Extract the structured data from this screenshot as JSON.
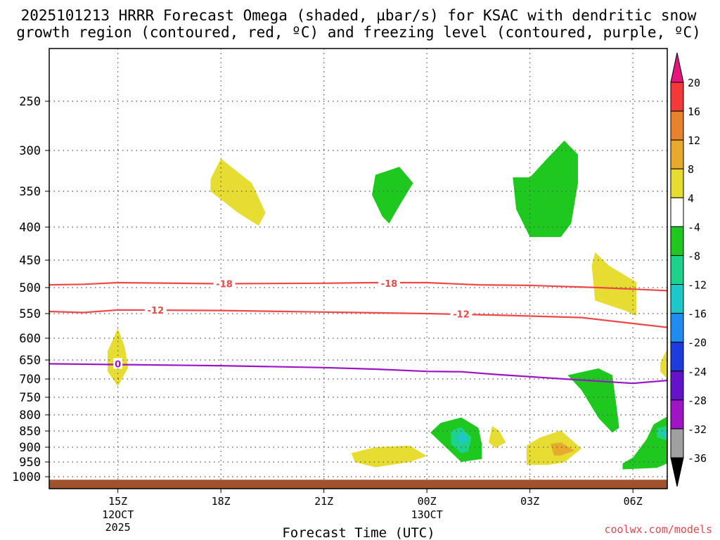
{
  "chart_data": {
    "type": "contour",
    "title_line1": "2025101213 HRRR Forecast Omega (shaded, µbar/s) for KSAC with dendritic snow",
    "title_line2": "growth region (contoured, red, ºC) and freezing level (contoured, purple, ºC)",
    "xlabel": "Forecast Time (UTC)",
    "credit": "coolwx.com/models",
    "x_ticks": [
      {
        "hour": 15,
        "label": "15Z",
        "date_line1": "12OCT",
        "date_line2": "2025"
      },
      {
        "hour": 18,
        "label": "18Z"
      },
      {
        "hour": 21,
        "label": "21Z"
      },
      {
        "hour": 24,
        "label": "00Z",
        "date_line1": "13OCT"
      },
      {
        "hour": 27,
        "label": "03Z"
      },
      {
        "hour": 30,
        "label": "06Z"
      }
    ],
    "x_range_hours": [
      13,
      31
    ],
    "y_axis": "pressure (hPa)",
    "y_levels": [
      250,
      300,
      350,
      400,
      450,
      500,
      550,
      600,
      650,
      700,
      750,
      800,
      850,
      900,
      950,
      1000
    ],
    "y_range": [
      200,
      1020
    ],
    "colorbar": {
      "labels": [
        "20",
        "16",
        "12",
        "8",
        "4",
        "-4",
        "-8",
        "-12",
        "-16",
        "-20",
        "-24",
        "-28",
        "-32",
        "-36"
      ],
      "bins": [
        {
          "range": "16 to 20",
          "color": "#f23a3a"
        },
        {
          "range": "12 to 16",
          "color": "#e8832c"
        },
        {
          "range": "8 to 12",
          "color": "#e8aa2c"
        },
        {
          "range": "4 to 8",
          "color": "#e6dc32"
        },
        {
          "range": "-4 to 4",
          "color": "#ffffff"
        },
        {
          "range": "-8 to -4",
          "color": "#1ec81e"
        },
        {
          "range": "-12 to -8",
          "color": "#1ed28c"
        },
        {
          "range": "-16 to -12",
          "color": "#1ec8c8"
        },
        {
          "range": "-20 to -16",
          "color": "#1e8cf0"
        },
        {
          "range": "-24 to -20",
          "color": "#1e3cdc"
        },
        {
          "range": "-28 to -24",
          "color": "#6414c8"
        },
        {
          "range": "-32 to -28",
          "color": "#a014c8"
        },
        {
          "range": "-36 to -32",
          "color": "#a0a0a0"
        }
      ],
      "top_arrow_color": "#e6147d",
      "bottom_arrow_color": "#000000"
    },
    "contours": [
      {
        "name": "-18C isotherm",
        "value": -18,
        "color": "#f04848",
        "label": "-18",
        "points": [
          [
            13,
            495
          ],
          [
            14,
            494
          ],
          [
            15,
            491
          ],
          [
            18,
            493
          ],
          [
            21,
            492
          ],
          [
            22.5,
            491
          ],
          [
            24,
            491
          ],
          [
            25.5,
            495
          ],
          [
            27,
            496
          ],
          [
            29,
            500
          ],
          [
            31,
            506
          ]
        ]
      },
      {
        "name": "-12C isotherm",
        "value": -12,
        "color": "#f04848",
        "label": "-12",
        "points": [
          [
            13,
            546
          ],
          [
            14,
            548
          ],
          [
            15,
            543
          ],
          [
            18,
            544
          ],
          [
            21,
            547
          ],
          [
            24,
            550
          ],
          [
            26,
            553
          ],
          [
            28.5,
            558
          ],
          [
            31,
            578
          ]
        ]
      },
      {
        "name": "freezing level",
        "value": 0,
        "color": "#9a14c8",
        "label": "0",
        "points": [
          [
            13,
            660
          ],
          [
            15,
            662
          ],
          [
            18,
            665
          ],
          [
            21,
            670
          ],
          [
            22.5,
            674
          ],
          [
            24,
            680
          ],
          [
            25,
            681
          ],
          [
            26,
            688
          ],
          [
            28,
            700
          ],
          [
            30,
            712
          ],
          [
            31,
            704
          ]
        ]
      }
    ],
    "contour_labels": [
      {
        "contour": "-18C isotherm",
        "text": "-18",
        "hour": 18.1,
        "pressure": 493
      },
      {
        "contour": "-18C isotherm",
        "text": "-18",
        "hour": 22.9,
        "pressure": 492
      },
      {
        "contour": "-12C isotherm",
        "text": "-12",
        "hour": 16.1,
        "pressure": 543
      },
      {
        "contour": "-12C isotherm",
        "text": "-12",
        "hour": 25.0,
        "pressure": 551
      },
      {
        "contour": "freezing level",
        "text": "0",
        "hour": 15.0,
        "pressure": 660
      }
    ],
    "omega_regions": [
      {
        "value_range": "4 to 8",
        "color": "#e6dc32",
        "points": [
          [
            18.0,
            310
          ],
          [
            18.9,
            340
          ],
          [
            19.3,
            380
          ],
          [
            19.1,
            398
          ],
          [
            18.5,
            380
          ],
          [
            17.7,
            350
          ],
          [
            17.7,
            335
          ]
        ]
      },
      {
        "value_range": "-8 to -4",
        "color": "#1ec81e",
        "points": [
          [
            22.5,
            330
          ],
          [
            23.2,
            320
          ],
          [
            23.6,
            340
          ],
          [
            23.2,
            370
          ],
          [
            22.9,
            395
          ],
          [
            22.7,
            385
          ],
          [
            22.4,
            355
          ]
        ]
      },
      {
        "value_range": "-8 to -4",
        "color": "#1ec81e",
        "points": [
          [
            26.5,
            333
          ],
          [
            27.0,
            333
          ],
          [
            27.5,
            310
          ],
          [
            28.0,
            290
          ],
          [
            28.4,
            305
          ],
          [
            28.4,
            340
          ],
          [
            28.2,
            395
          ],
          [
            27.9,
            415
          ],
          [
            27.0,
            415
          ],
          [
            26.6,
            375
          ]
        ]
      },
      {
        "value_range": "4 to 8",
        "color": "#e6dc32",
        "points": [
          [
            28.9,
            438
          ],
          [
            29.3,
            460
          ],
          [
            30.1,
            490
          ],
          [
            30.1,
            525
          ],
          [
            30.1,
            555
          ],
          [
            29.8,
            545
          ],
          [
            28.9,
            525
          ],
          [
            28.8,
            460
          ]
        ]
      },
      {
        "value_range": "4 to 8",
        "color": "#e6dc32",
        "points": [
          [
            15.0,
            580
          ],
          [
            15.2,
            620
          ],
          [
            15.3,
            670
          ],
          [
            15.0,
            720
          ],
          [
            14.7,
            680
          ],
          [
            14.7,
            630
          ]
        ]
      },
      {
        "value_range": "4 to 8",
        "color": "#e6dc32",
        "points": [
          [
            30.9,
            640
          ],
          [
            31.0,
            625
          ],
          [
            31.0,
            700
          ],
          [
            30.8,
            680
          ],
          [
            30.8,
            658
          ]
        ]
      },
      {
        "value_range": "-8 to -4",
        "color": "#1ec81e",
        "points": [
          [
            28.1,
            690
          ],
          [
            29.0,
            672
          ],
          [
            29.4,
            690
          ],
          [
            29.5,
            760
          ],
          [
            29.6,
            840
          ],
          [
            29.4,
            855
          ],
          [
            29.0,
            810
          ],
          [
            28.5,
            730
          ]
        ]
      },
      {
        "value_range": "-8 to -4",
        "color": "#1ec81e",
        "points": [
          [
            24.1,
            855
          ],
          [
            24.4,
            825
          ],
          [
            25.0,
            808
          ],
          [
            25.5,
            840
          ],
          [
            25.6,
            890
          ],
          [
            25.6,
            940
          ],
          [
            25.0,
            950
          ],
          [
            24.5,
            895
          ]
        ]
      },
      {
        "value_range": "-12 to -8",
        "color": "#1ed28c",
        "points": [
          [
            24.7,
            850
          ],
          [
            25.0,
            838
          ],
          [
            25.3,
            870
          ],
          [
            25.2,
            915
          ],
          [
            25.0,
            920
          ],
          [
            24.7,
            890
          ]
        ]
      },
      {
        "value_range": "-16 to -12",
        "color": "#1ec8c8",
        "points": [
          [
            24.9,
            860
          ],
          [
            25.1,
            855
          ],
          [
            25.2,
            880
          ],
          [
            25.0,
            890
          ],
          [
            24.9,
            875
          ]
        ]
      },
      {
        "value_range": "-8 to -4",
        "color": "#1ec81e",
        "points": [
          [
            30.4,
            875
          ],
          [
            30.6,
            830
          ],
          [
            31.0,
            805
          ],
          [
            31.0,
            955
          ],
          [
            30.7,
            970
          ],
          [
            29.7,
            975
          ],
          [
            29.7,
            955
          ],
          [
            30.0,
            935
          ]
        ]
      },
      {
        "value_range": "-12 to -8",
        "color": "#1ed28c",
        "points": [
          [
            30.7,
            840
          ],
          [
            31.0,
            835
          ],
          [
            31.0,
            880
          ],
          [
            30.7,
            870
          ]
        ]
      },
      {
        "value_range": "-16 to -12",
        "color": "#1ec8c8",
        "points": [
          [
            30.85,
            855
          ],
          [
            31.0,
            850
          ],
          [
            31.0,
            870
          ],
          [
            30.85,
            862
          ]
        ]
      },
      {
        "value_range": "4 to 8",
        "color": "#e6dc32",
        "points": [
          [
            21.8,
            920
          ],
          [
            22.5,
            900
          ],
          [
            23.5,
            895
          ],
          [
            24.0,
            930
          ],
          [
            23.5,
            950
          ],
          [
            22.5,
            968
          ],
          [
            21.9,
            950
          ]
        ]
      },
      {
        "value_range": "4 to 8",
        "color": "#e6dc32",
        "points": [
          [
            26.9,
            895
          ],
          [
            27.3,
            870
          ],
          [
            27.9,
            848
          ],
          [
            28.5,
            905
          ],
          [
            28.0,
            952
          ],
          [
            27.5,
            960
          ],
          [
            26.9,
            960
          ]
        ]
      },
      {
        "value_range": "8 to 12",
        "color": "#e8aa2c",
        "points": [
          [
            27.6,
            890
          ],
          [
            27.9,
            885
          ],
          [
            28.3,
            912
          ],
          [
            27.9,
            928
          ],
          [
            27.7,
            928
          ]
        ]
      },
      {
        "value_range": "4 to 8",
        "color": "#e6dc32",
        "points": [
          [
            25.9,
            835
          ],
          [
            26.1,
            848
          ],
          [
            26.3,
            885
          ],
          [
            26.0,
            903
          ],
          [
            25.8,
            885
          ]
        ]
      }
    ],
    "terrain": {
      "color": "#a0522d",
      "pressure": 1005
    }
  }
}
